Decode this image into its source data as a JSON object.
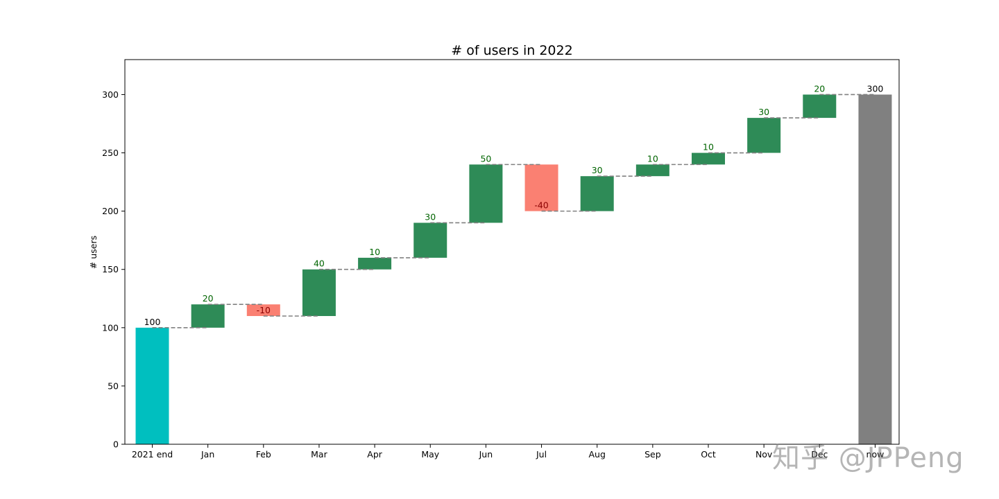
{
  "chart_data": {
    "type": "bar",
    "subtype": "waterfall",
    "title": "# of users in 2022",
    "xlabel": "",
    "ylabel": "# users",
    "ylim": [
      0,
      330
    ],
    "yticks": [
      0,
      50,
      100,
      150,
      200,
      250,
      300
    ],
    "grid": false,
    "categories": [
      "2021 end",
      "Jan",
      "Feb",
      "Mar",
      "Apr",
      "May",
      "Jun",
      "Jul",
      "Aug",
      "Sep",
      "Oct",
      "Nov",
      "Dec",
      "now"
    ],
    "changes": [
      100,
      20,
      -10,
      40,
      10,
      30,
      50,
      -40,
      30,
      10,
      10,
      30,
      20,
      300
    ],
    "labels": [
      "100",
      "20",
      "-10",
      "40",
      "10",
      "30",
      "50",
      "-40",
      "30",
      "10",
      "10",
      "30",
      "20",
      "300"
    ],
    "kinds": [
      "start",
      "delta",
      "delta",
      "delta",
      "delta",
      "delta",
      "delta",
      "delta",
      "delta",
      "delta",
      "delta",
      "delta",
      "delta",
      "total"
    ],
    "colors": {
      "start": "#00bfbf",
      "increase": "#2e8b57",
      "decrease": "#fa8072",
      "total": "#808080",
      "connector": "#808080",
      "increase_label": "#006400",
      "decrease_label": "#8b0000",
      "total_label": "#000000"
    }
  },
  "watermark": "知乎 @JPPeng"
}
